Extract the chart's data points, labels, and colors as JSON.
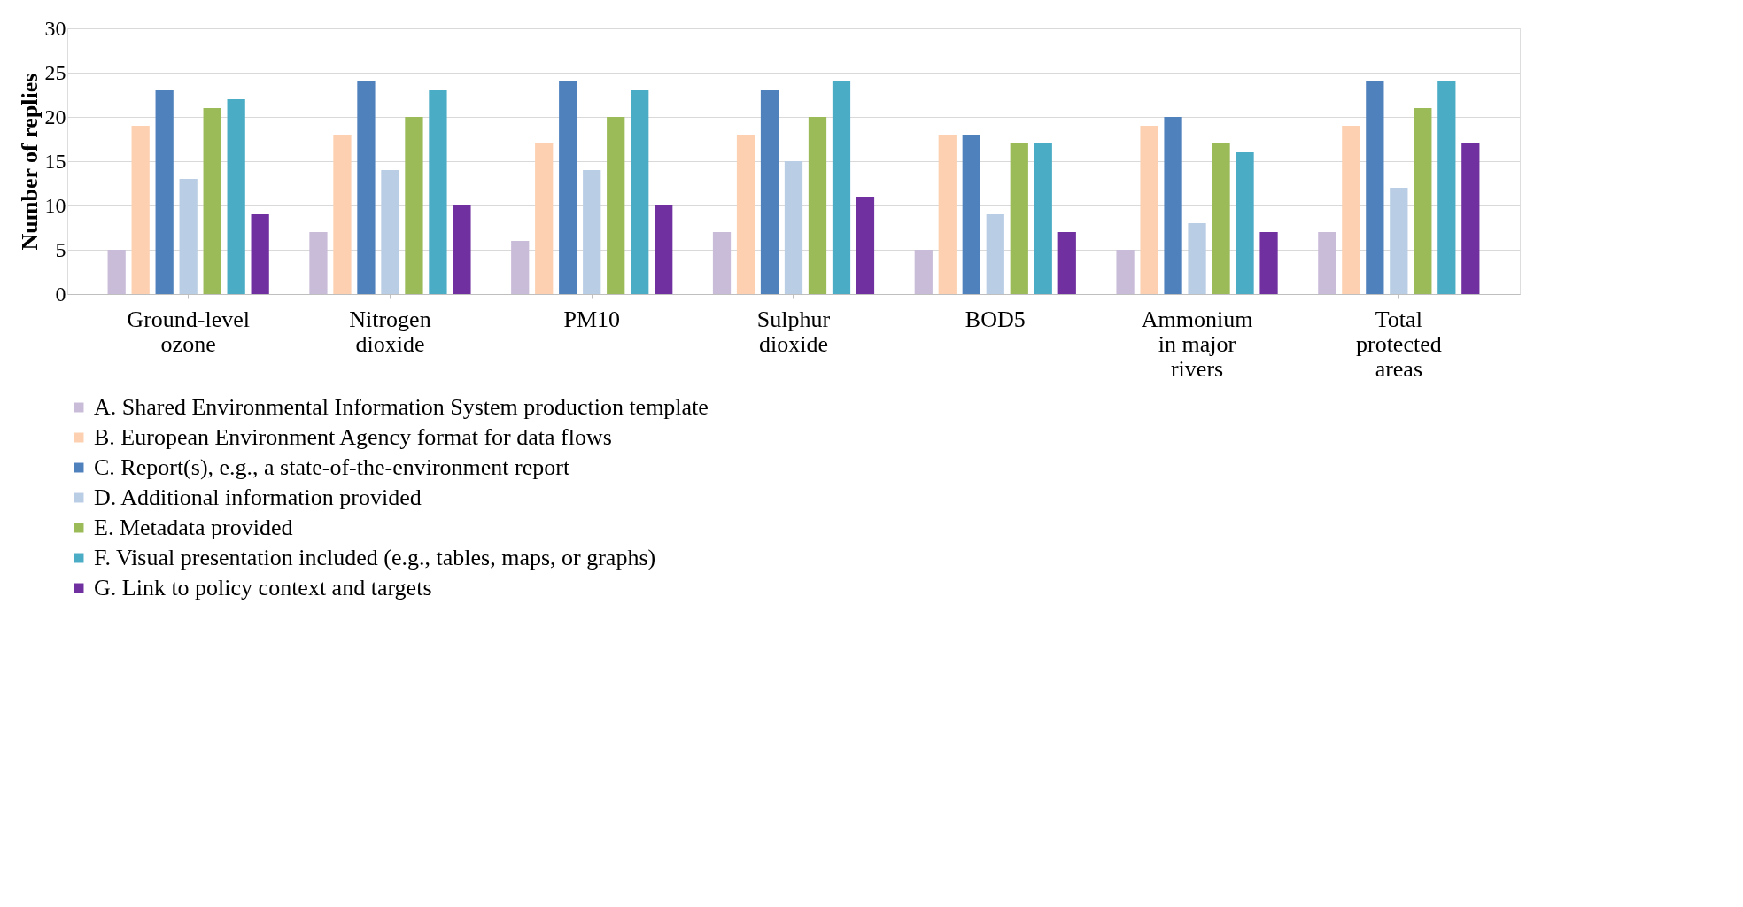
{
  "chart_data": {
    "type": "bar",
    "ylabel": "Number of replies",
    "categories": [
      "Ground-level ozone",
      "Nitrogen dioxide",
      "PM10",
      "Sulphur dioxide",
      "BOD5",
      "Ammonium in major rivers",
      "Total protected areas"
    ],
    "series": [
      {
        "name": "A. Shared Environmental Information System production template",
        "color": "#c9bcd9",
        "values": [
          5,
          7,
          6,
          7,
          5,
          5,
          7
        ]
      },
      {
        "name": "B. European Environment Agency format for data flows",
        "color": "#fcd0b0",
        "values": [
          19,
          18,
          17,
          18,
          18,
          19,
          19
        ]
      },
      {
        "name": "C. Report(s), e.g., a state-of-the-environment report",
        "color": "#4f81bd",
        "values": [
          23,
          24,
          24,
          23,
          18,
          20,
          24
        ]
      },
      {
        "name": "D. Additional information provided",
        "color": "#b9cde5",
        "values": [
          13,
          14,
          14,
          15,
          9,
          8,
          12
        ]
      },
      {
        "name": "E. Metadata provided",
        "color": "#9bbb59",
        "values": [
          21,
          20,
          20,
          20,
          17,
          17,
          21
        ]
      },
      {
        "name": "F. Visual presentation included (e.g., tables, maps, or graphs)",
        "color": "#4bacc6",
        "values": [
          22,
          23,
          23,
          24,
          17,
          16,
          24
        ]
      },
      {
        "name": "G. Link to policy context and targets",
        "color": "#7030a0",
        "values": [
          9,
          10,
          10,
          11,
          7,
          7,
          17
        ]
      }
    ],
    "ylim": [
      0,
      30
    ],
    "yticks": [
      0,
      5,
      10,
      15,
      20,
      25,
      30
    ],
    "grid": "y",
    "legend": "bottom"
  }
}
